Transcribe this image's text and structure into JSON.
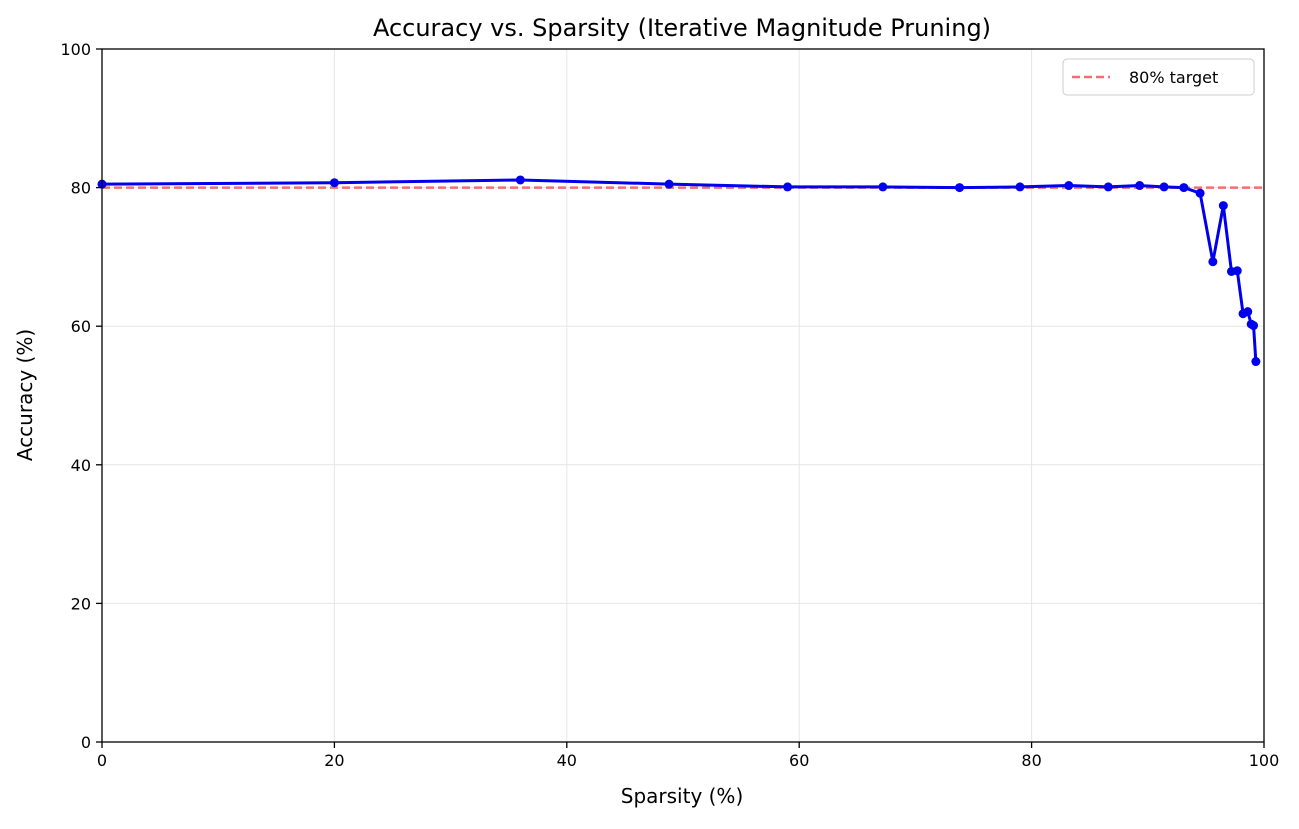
{
  "chart_data": {
    "type": "line",
    "title": "Accuracy vs. Sparsity (Iterative Magnitude Pruning)",
    "xlabel": "Sparsity (%)",
    "ylabel": "Accuracy (%)",
    "xlim": [
      0,
      100
    ],
    "ylim": [
      0,
      100
    ],
    "xticks": [
      0,
      20,
      40,
      60,
      80,
      100
    ],
    "yticks": [
      0,
      20,
      40,
      60,
      80,
      100
    ],
    "grid": true,
    "legend_position": "top-right",
    "colors": {
      "series": "#0000ee",
      "reference": "#f07070",
      "grid": "#e6e6e6",
      "axis": "#000000"
    },
    "series": [
      {
        "name": "accuracy",
        "x": [
          0,
          20,
          36,
          48.8,
          59,
          67.2,
          73.8,
          79,
          83.2,
          86.6,
          89.3,
          91.4,
          93.1,
          94.5,
          95.6,
          96.5,
          97.2,
          97.7,
          98.2,
          98.6,
          98.9,
          99.1,
          99.3
        ],
        "y": [
          80.5,
          80.7,
          81.1,
          80.5,
          80.1,
          80.1,
          80.0,
          80.1,
          80.3,
          80.1,
          80.3,
          80.1,
          80.0,
          79.2,
          69.3,
          77.4,
          67.9,
          68.0,
          61.8,
          62.1,
          60.3,
          60.1,
          54.9
        ]
      }
    ],
    "reference_line": {
      "label": "80% target",
      "y": 80
    }
  }
}
